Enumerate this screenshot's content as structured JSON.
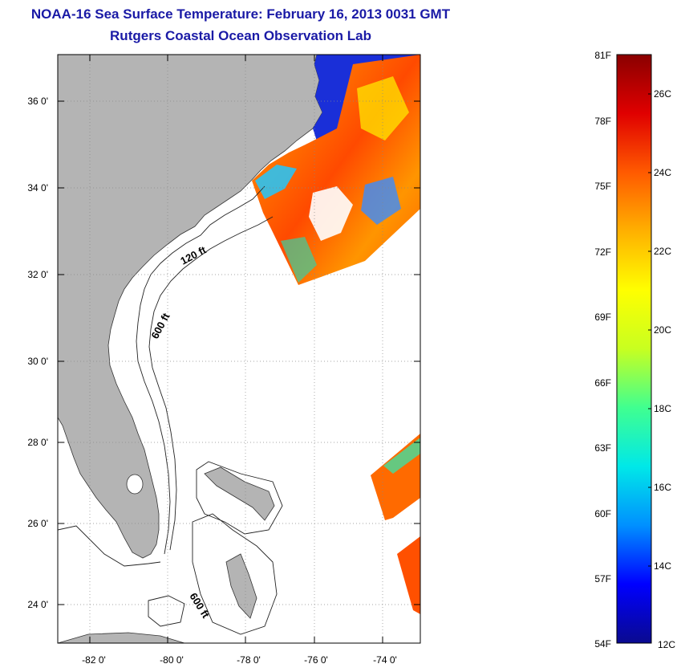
{
  "header": {
    "title": "NOAA-16 Sea Surface Temperature:  February 16, 2013 0031 GMT",
    "subtitle": "Rutgers Coastal Ocean Observation Lab"
  },
  "map": {
    "lat_ticks": [
      "36 0'",
      "34 0'",
      "32 0'",
      "30 0'",
      "28 0'",
      "26 0'",
      "24 0'"
    ],
    "lon_ticks": [
      "-82 0'",
      "-80 0'",
      "-78 0'",
      "-76 0'",
      "-74 0'"
    ],
    "isobaths": [
      "120 ft",
      "600 ft",
      "600 ft"
    ]
  },
  "colorbar": {
    "fahrenheit": [
      "81F",
      "78F",
      "75F",
      "72F",
      "69F",
      "66F",
      "63F",
      "60F",
      "57F",
      "54F"
    ],
    "celsius": [
      "26C",
      "24C",
      "22C",
      "20C",
      "18C",
      "16C",
      "14C",
      "12C"
    ],
    "colors": [
      "#0a0a8f",
      "#0000ff",
      "#0090ff",
      "#00e8e8",
      "#40ff90",
      "#c8ff20",
      "#ffff00",
      "#ffb000",
      "#ff5a00",
      "#e00000",
      "#8a0000"
    ]
  }
}
